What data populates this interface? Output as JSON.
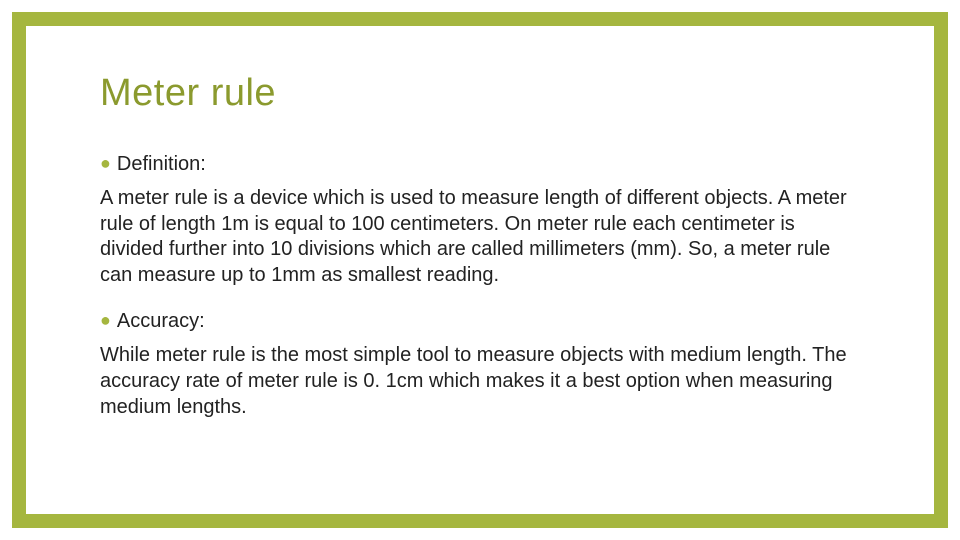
{
  "slide": {
    "title": "Meter rule",
    "sections": [
      {
        "label": "Definition:",
        "text": "A meter rule is a device which is used to measure length of different objects. A meter rule of length 1m is equal to 100 centimeters. On meter rule each centimeter is divided further into 10 divisions which are called millimeters (mm). So, a meter rule can measure up to 1mm as smallest  reading."
      },
      {
        "label": "Accuracy:",
        "text": "While meter rule is the most simple tool to measure objects with medium length. The accuracy rate of meter rule is 0. 1cm which makes it a best option when measuring medium lengths."
      }
    ]
  },
  "style": {
    "border_color": "#a5b63f",
    "title_color": "#8b9a2e",
    "bullet_color": "#a5b63f",
    "text_color": "#222222",
    "background_color": "#ffffff",
    "title_fontsize": 38,
    "body_fontsize": 20,
    "border_width": 14
  }
}
